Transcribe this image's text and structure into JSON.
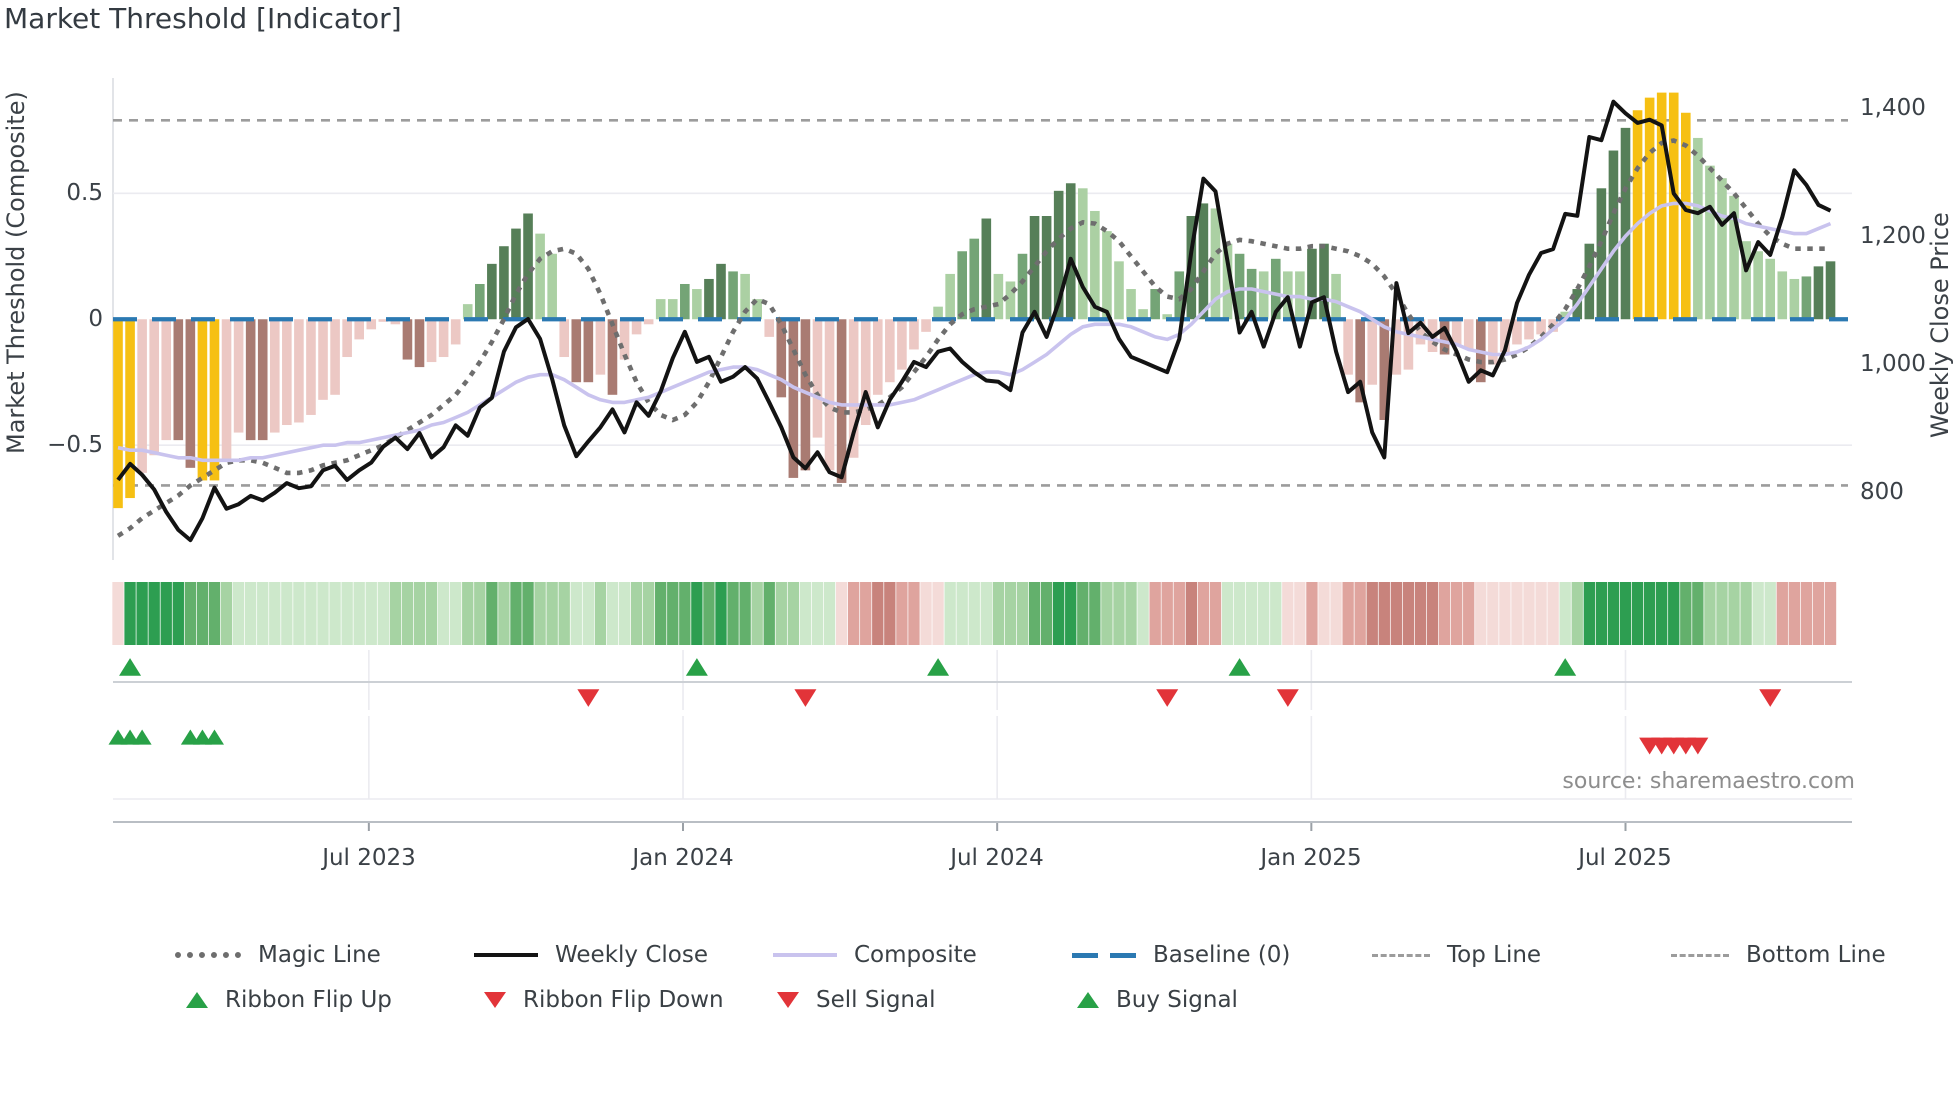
{
  "title": "Market Threshold [Indicator]",
  "source": "source: sharemaestro.com",
  "axes": {
    "left": {
      "title": "Market Threshold (Composite)",
      "range": [
        -0.956,
        0.958
      ],
      "ticks": [
        {
          "label": "0.5",
          "value": 0.5
        },
        {
          "label": "0",
          "value": 0
        },
        {
          "label": "−0.5",
          "value": -0.5
        }
      ]
    },
    "right": {
      "title": "Weekly Close Price",
      "range": [
        695,
        1447
      ],
      "ticks": [
        {
          "label": "1,400",
          "value": 1400
        },
        {
          "label": "1,200",
          "value": 1200
        },
        {
          "label": "1,000",
          "value": 1000
        },
        {
          "label": "800",
          "value": 800
        }
      ]
    },
    "x": {
      "ticks": [
        {
          "label": "Jul 2023",
          "week": 20.8
        },
        {
          "label": "Jan 2024",
          "week": 46.85
        },
        {
          "label": "Jul 2024",
          "week": 72.9
        },
        {
          "label": "Jan 2025",
          "week": 98.95
        },
        {
          "label": "Jul 2025",
          "week": 125.0
        }
      ]
    }
  },
  "legend": {
    "row1": [
      {
        "label": "Magic Line",
        "marker": "dotted-gray-line"
      },
      {
        "label": "Weekly Close",
        "marker": "solid-black-line"
      },
      {
        "label": "Composite",
        "marker": "solid-lavender-line"
      },
      {
        "label": "Baseline (0)",
        "marker": "dashed-blue-line"
      },
      {
        "label": "Top Line",
        "marker": "dashed-gray-line"
      },
      {
        "label": "Bottom Line",
        "marker": "dashed-gray-line"
      }
    ],
    "row2": [
      {
        "label": "Ribbon Flip Up",
        "marker": "green-up-triangle"
      },
      {
        "label": "Ribbon Flip Down",
        "marker": "red-down-triangle"
      },
      {
        "label": "Sell Signal",
        "marker": "red-down-triangle"
      },
      {
        "label": "Buy Signal",
        "marker": "green-up-triangle"
      }
    ]
  },
  "colors": {
    "bar": {
      "Y": "#f6c013",
      "P": "#ecc8c4",
      "M": "#a97b72",
      "L": "#abd0a3",
      "G": "#74a476",
      "D": "#567f58"
    },
    "ribbon": {
      "p1": "#f4dbd8",
      "p2": "#dfa49e",
      "p3": "#c8837c",
      "g1": "#cde8cb",
      "g2": "#a6d3a3",
      "g3": "#63b06c",
      "g4": "#2d9e51"
    },
    "close": "#131313",
    "composite": "#c9c3ee",
    "magic": "#6e6e6e",
    "baseline": "#2b79b2",
    "band": "#9c9c9c",
    "green_tri": "#28a147",
    "red_tri": "#e23439",
    "grid": "#ebebf0",
    "spine": "#d8dbe0",
    "axis_line": "#b9bec4"
  },
  "chart_data": {
    "type": "combo: weekly bars (threshold, left axis) + lines (close on right axis; composite & magic on left axis) + trend ribbon + signal markers",
    "x_range": "weekly, Feb 2023 – Nov 2025 (143 weeks)",
    "baseline": 0,
    "top_line": 0.79,
    "bottom_line": -0.66,
    "bars": [
      -0.75,
      -0.71,
      -0.61,
      -0.54,
      -0.48,
      -0.48,
      -0.59,
      -0.64,
      -0.64,
      -0.56,
      -0.45,
      -0.48,
      -0.48,
      -0.45,
      -0.42,
      -0.41,
      -0.38,
      -0.32,
      -0.3,
      -0.15,
      -0.08,
      -0.04,
      -0.01,
      -0.02,
      -0.16,
      -0.19,
      -0.17,
      -0.15,
      -0.1,
      0.06,
      0.14,
      0.22,
      0.29,
      0.36,
      0.42,
      0.34,
      0.26,
      -0.15,
      -0.25,
      -0.25,
      -0.22,
      -0.3,
      -0.16,
      -0.06,
      -0.02,
      0.08,
      0.08,
      0.14,
      0.12,
      0.16,
      0.22,
      0.19,
      0.18,
      0.08,
      -0.07,
      -0.31,
      -0.63,
      -0.6,
      -0.47,
      -0.6,
      -0.65,
      -0.55,
      -0.42,
      -0.3,
      -0.25,
      -0.2,
      -0.12,
      -0.05,
      0.05,
      0.18,
      0.27,
      0.32,
      0.4,
      0.18,
      0.15,
      0.26,
      0.41,
      0.41,
      0.51,
      0.54,
      0.52,
      0.43,
      0.35,
      0.23,
      0.12,
      0.04,
      0.12,
      0.02,
      0.19,
      0.41,
      0.46,
      0.44,
      0.3,
      0.26,
      0.2,
      0.19,
      0.24,
      0.19,
      0.19,
      0.28,
      0.3,
      0.18,
      -0.22,
      -0.33,
      -0.26,
      -0.4,
      -0.22,
      -0.2,
      -0.1,
      -0.13,
      -0.14,
      -0.1,
      -0.12,
      -0.25,
      -0.18,
      -0.13,
      -0.1,
      -0.08,
      -0.06,
      -0.05,
      0.03,
      0.12,
      0.3,
      0.52,
      0.67,
      0.76,
      0.83,
      0.88,
      0.9,
      0.9,
      0.82,
      0.72,
      0.61,
      0.56,
      0.49,
      0.31,
      0.27,
      0.24,
      0.19,
      0.16,
      0.17,
      0.21,
      0.23
    ],
    "bar_colors": [
      "Y",
      "Y",
      "P",
      "P",
      "P",
      "M",
      "M",
      "Y",
      "Y",
      "P",
      "P",
      "M",
      "M",
      "P",
      "P",
      "P",
      "P",
      "P",
      "P",
      "P",
      "P",
      "P",
      "P",
      "P",
      "M",
      "M",
      "P",
      "P",
      "P",
      "L",
      "G",
      "D",
      "D",
      "D",
      "D",
      "L",
      "L",
      "P",
      "M",
      "M",
      "P",
      "M",
      "P",
      "P",
      "P",
      "L",
      "L",
      "G",
      "L",
      "D",
      "D",
      "G",
      "L",
      "L",
      "P",
      "M",
      "M",
      "M",
      "P",
      "P",
      "M",
      "P",
      "P",
      "P",
      "P",
      "P",
      "P",
      "P",
      "L",
      "L",
      "G",
      "G",
      "D",
      "L",
      "L",
      "G",
      "D",
      "D",
      "D",
      "D",
      "L",
      "L",
      "L",
      "L",
      "L",
      "L",
      "G",
      "L",
      "G",
      "D",
      "D",
      "L",
      "L",
      "G",
      "G",
      "L",
      "G",
      "L",
      "L",
      "D",
      "D",
      "L",
      "P",
      "M",
      "P",
      "M",
      "P",
      "P",
      "P",
      "P",
      "M",
      "P",
      "P",
      "M",
      "P",
      "P",
      "P",
      "P",
      "P",
      "P",
      "L",
      "D",
      "D",
      "D",
      "D",
      "D",
      "Y",
      "Y",
      "Y",
      "Y",
      "Y",
      "L",
      "L",
      "L",
      "L",
      "L",
      "L",
      "L",
      "L",
      "L",
      "G",
      "D",
      "D"
    ],
    "close": [
      820,
      845,
      828,
      805,
      770,
      742,
      726,
      760,
      808,
      775,
      782,
      795,
      788,
      800,
      815,
      807,
      810,
      835,
      842,
      820,
      835,
      847,
      872,
      886,
      868,
      893,
      855,
      871,
      905,
      889,
      933,
      948,
      1020,
      1058,
      1071,
      1040,
      977,
      905,
      857,
      880,
      902,
      930,
      894,
      941,
      920,
      958,
      1010,
      1051,
      1004,
      1012,
      973,
      981,
      996,
      978,
      941,
      902,
      855,
      838,
      863,
      832,
      824,
      894,
      957,
      902,
      945,
      973,
      1004,
      996,
      1020,
      1025,
      1004,
      988,
      975,
      973,
      960,
      1050,
      1082,
      1043,
      1097,
      1165,
      1121,
      1090,
      1082,
      1040,
      1012,
      1004,
      996,
      988,
      1040,
      1176,
      1290,
      1270,
      1161,
      1050,
      1082,
      1028,
      1082,
      1105,
      1028,
      1097,
      1105,
      1020,
      957,
      973,
      894,
      855,
      1127,
      1049,
      1065,
      1043,
      1057,
      1020,
      973,
      991,
      983,
      1022,
      1096,
      1140,
      1174,
      1180,
      1235,
      1232,
      1355,
      1350,
      1410,
      1392,
      1377,
      1382,
      1373,
      1267,
      1241,
      1236,
      1246,
      1218,
      1236,
      1147,
      1191,
      1171,
      1230,
      1303,
      1280,
      1249,
      1240
    ],
    "composite": [
      -0.51,
      -0.52,
      -0.52,
      -0.53,
      -0.54,
      -0.55,
      -0.55,
      -0.56,
      -0.56,
      -0.56,
      -0.56,
      -0.55,
      -0.55,
      -0.54,
      -0.53,
      -0.52,
      -0.51,
      -0.5,
      -0.5,
      -0.49,
      -0.49,
      -0.48,
      -0.47,
      -0.46,
      -0.45,
      -0.44,
      -0.42,
      -0.41,
      -0.39,
      -0.37,
      -0.34,
      -0.31,
      -0.28,
      -0.25,
      -0.23,
      -0.22,
      -0.22,
      -0.24,
      -0.27,
      -0.3,
      -0.32,
      -0.33,
      -0.33,
      -0.32,
      -0.31,
      -0.29,
      -0.27,
      -0.25,
      -0.23,
      -0.21,
      -0.2,
      -0.19,
      -0.19,
      -0.2,
      -0.22,
      -0.24,
      -0.27,
      -0.29,
      -0.31,
      -0.33,
      -0.34,
      -0.34,
      -0.34,
      -0.34,
      -0.34,
      -0.33,
      -0.32,
      -0.3,
      -0.28,
      -0.26,
      -0.24,
      -0.22,
      -0.21,
      -0.21,
      -0.22,
      -0.2,
      -0.17,
      -0.14,
      -0.1,
      -0.06,
      -0.03,
      -0.02,
      -0.02,
      -0.02,
      -0.03,
      -0.05,
      -0.07,
      -0.08,
      -0.06,
      -0.02,
      0.03,
      0.08,
      0.11,
      0.12,
      0.12,
      0.11,
      0.1,
      0.09,
      0.09,
      0.08,
      0.08,
      0.07,
      0.05,
      0.03,
      0.0,
      -0.03,
      -0.05,
      -0.06,
      -0.07,
      -0.08,
      -0.09,
      -0.1,
      -0.12,
      -0.13,
      -0.14,
      -0.14,
      -0.13,
      -0.11,
      -0.08,
      -0.04,
      0.0,
      0.06,
      0.13,
      0.2,
      0.27,
      0.33,
      0.38,
      0.42,
      0.45,
      0.46,
      0.46,
      0.45,
      0.43,
      0.41,
      0.4,
      0.38,
      0.37,
      0.36,
      0.35,
      0.34,
      0.34,
      0.36,
      0.38
    ],
    "magic": [
      -0.86,
      -0.83,
      -0.79,
      -0.76,
      -0.73,
      -0.7,
      -0.66,
      -0.63,
      -0.6,
      -0.57,
      -0.56,
      -0.56,
      -0.57,
      -0.59,
      -0.61,
      -0.61,
      -0.6,
      -0.58,
      -0.57,
      -0.56,
      -0.54,
      -0.52,
      -0.5,
      -0.47,
      -0.44,
      -0.41,
      -0.38,
      -0.34,
      -0.3,
      -0.24,
      -0.17,
      -0.09,
      0.0,
      0.1,
      0.18,
      0.24,
      0.27,
      0.28,
      0.26,
      0.2,
      0.1,
      -0.02,
      -0.14,
      -0.25,
      -0.33,
      -0.38,
      -0.4,
      -0.38,
      -0.33,
      -0.25,
      -0.15,
      -0.05,
      0.03,
      0.08,
      0.06,
      -0.02,
      -0.12,
      -0.22,
      -0.3,
      -0.35,
      -0.37,
      -0.37,
      -0.36,
      -0.34,
      -0.31,
      -0.27,
      -0.21,
      -0.15,
      -0.08,
      -0.02,
      0.02,
      0.04,
      0.05,
      0.06,
      0.1,
      0.15,
      0.21,
      0.27,
      0.32,
      0.36,
      0.385,
      0.38,
      0.35,
      0.31,
      0.25,
      0.19,
      0.13,
      0.09,
      0.08,
      0.12,
      0.19,
      0.26,
      0.3,
      0.315,
      0.31,
      0.3,
      0.29,
      0.28,
      0.28,
      0.29,
      0.29,
      0.28,
      0.27,
      0.25,
      0.22,
      0.17,
      0.1,
      0.02,
      -0.05,
      -0.09,
      -0.12,
      -0.14,
      -0.16,
      -0.17,
      -0.17,
      -0.16,
      -0.14,
      -0.11,
      -0.07,
      -0.02,
      0.04,
      0.12,
      0.21,
      0.31,
      0.42,
      0.52,
      0.6,
      0.66,
      0.7,
      0.71,
      0.69,
      0.65,
      0.6,
      0.55,
      0.5,
      0.44,
      0.38,
      0.33,
      0.3,
      0.28,
      0.28,
      0.28,
      0.28
    ],
    "ribbon": [
      "p1",
      "g4",
      "g4",
      "g4",
      "g4",
      "g4",
      "g3",
      "g3",
      "g3",
      "g2",
      "g1",
      "g1",
      "g1",
      "g1",
      "g1",
      "g1",
      "g1",
      "g1",
      "g1",
      "g1",
      "g1",
      "g1",
      "g1",
      "g2",
      "g2",
      "g2",
      "g2",
      "g1",
      "g1",
      "g2",
      "g2",
      "g3",
      "g2",
      "g3",
      "g3",
      "g2",
      "g2",
      "g2",
      "g1",
      "g1",
      "g2",
      "g1",
      "g1",
      "g2",
      "g2",
      "g3",
      "g3",
      "g3",
      "g4",
      "g3",
      "g4",
      "g3",
      "g3",
      "g2",
      "g3",
      "g2",
      "g2",
      "g1",
      "g1",
      "g1",
      "p1",
      "p2",
      "p2",
      "p3",
      "p3",
      "p2",
      "p2",
      "p1",
      "p1",
      "g1",
      "g1",
      "g1",
      "g1",
      "g2",
      "g2",
      "g2",
      "g3",
      "g3",
      "g4",
      "g4",
      "g3",
      "g3",
      "g2",
      "g2",
      "g2",
      "g1",
      "p2",
      "p2",
      "p2",
      "p3",
      "p2",
      "p2",
      "g1",
      "g1",
      "g1",
      "g1",
      "g1",
      "p1",
      "p1",
      "p2",
      "p1",
      "p1",
      "p2",
      "p2",
      "p3",
      "p3",
      "p3",
      "p3",
      "p3",
      "p3",
      "p2",
      "p2",
      "p2",
      "p1",
      "p1",
      "p1",
      "p1",
      "p1",
      "p1",
      "p1",
      "g1",
      "g2",
      "g4",
      "g4",
      "g4",
      "g4",
      "g4",
      "g4",
      "g4",
      "g4",
      "g3",
      "g3",
      "g2",
      "g2",
      "g2",
      "g2",
      "g1",
      "g1",
      "p2",
      "p2",
      "p2",
      "p2",
      "p2"
    ],
    "signals": {
      "flip_up_weeks": [
        1,
        48,
        68,
        93,
        120
      ],
      "flip_down_weeks": [
        39,
        57,
        87,
        97,
        137
      ],
      "buy_weeks": [
        0,
        1,
        2,
        6,
        7,
        8
      ],
      "sell_weeks": [
        127,
        128,
        129,
        130,
        131
      ]
    }
  }
}
